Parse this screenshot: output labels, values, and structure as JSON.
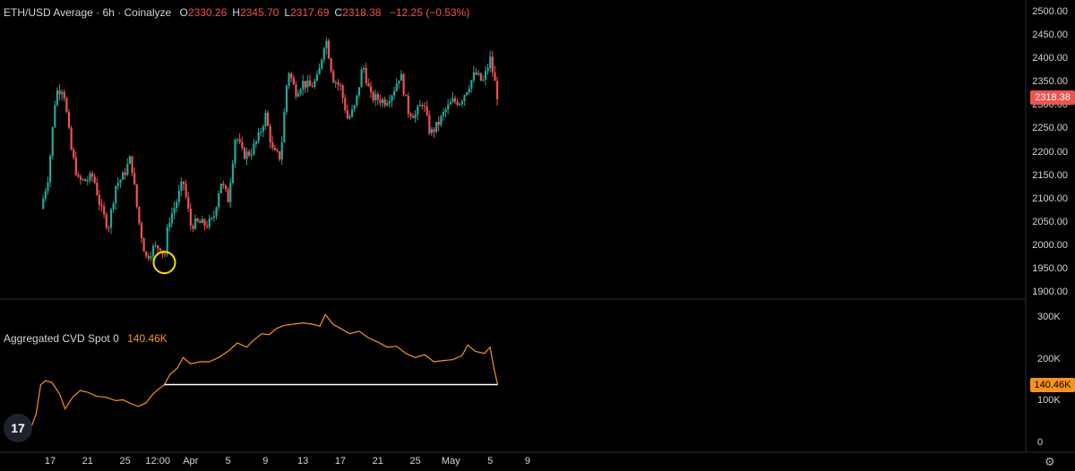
{
  "header": {
    "title": "ETH/USD Average · 6h · Coinalyze",
    "ohlc": [
      {
        "key": "O",
        "value": "2330.26"
      },
      {
        "key": "H",
        "value": "2345.70"
      },
      {
        "key": "L",
        "value": "2317.69"
      },
      {
        "key": "C",
        "value": "2318.38"
      }
    ],
    "change": "−12.25 (−0.53%)"
  },
  "cvd": {
    "title": "Aggregated CVD Spot 0",
    "value": "140.46K"
  },
  "price_tag": "2318.38",
  "cvd_tag": "140.46K",
  "colors": {
    "up": "#26a69a",
    "down": "#ef5350",
    "cvd": "#f7931a",
    "marker": "#f5e000"
  },
  "logo_text": "17",
  "icons": [
    "tradingview-logo-icon",
    "settings-gear-icon"
  ],
  "chart_data": [
    {
      "type": "candlestick",
      "title": "ETH/USD Average · 6h · Coinalyze",
      "y_ticks": [
        "2500.00",
        "2450.00",
        "2400.00",
        "2350.00",
        "2300.00",
        "2250.00",
        "2200.00",
        "2150.00",
        "2100.00",
        "2050.00",
        "2000.00",
        "1950.00",
        "1900.00"
      ],
      "ylim": [
        1890,
        2510
      ],
      "x_ticks": [
        "17",
        "21",
        "25",
        "12:00",
        "Apr",
        "5",
        "9",
        "13",
        "17",
        "21",
        "25",
        "May",
        "5",
        "9"
      ],
      "close_path": [
        {
          "day": 16.0,
          "price": 2080
        },
        {
          "day": 16.8,
          "price": 2150
        },
        {
          "day": 17.6,
          "price": 2330
        },
        {
          "day": 18.4,
          "price": 2340
        },
        {
          "day": 19.2,
          "price": 2210
        },
        {
          "day": 20.0,
          "price": 2140
        },
        {
          "day": 20.8,
          "price": 2140
        },
        {
          "day": 21.6,
          "price": 2150
        },
        {
          "day": 22.4,
          "price": 2080
        },
        {
          "day": 23.2,
          "price": 2040
        },
        {
          "day": 24.0,
          "price": 2130
        },
        {
          "day": 24.8,
          "price": 2150
        },
        {
          "day": 25.6,
          "price": 2190
        },
        {
          "day": 26.4,
          "price": 2060
        },
        {
          "day": 27.2,
          "price": 1975
        },
        {
          "day": 28.0,
          "price": 1995
        },
        {
          "day": 28.8,
          "price": 2000
        },
        {
          "day": 29.2,
          "price": 1975
        },
        {
          "day": 29.6,
          "price": 2050
        },
        {
          "day": 30.4,
          "price": 2090
        },
        {
          "day": 31.2,
          "price": 2140
        },
        {
          "day": 32.0,
          "price": 2045
        },
        {
          "day": 32.8,
          "price": 2050
        },
        {
          "day": 33.6,
          "price": 2045
        },
        {
          "day": 34.4,
          "price": 2055
        },
        {
          "day": 35.2,
          "price": 2140
        },
        {
          "day": 36.0,
          "price": 2100
        },
        {
          "day": 36.8,
          "price": 2240
        },
        {
          "day": 37.6,
          "price": 2195
        },
        {
          "day": 38.4,
          "price": 2200
        },
        {
          "day": 39.2,
          "price": 2230
        },
        {
          "day": 40.0,
          "price": 2280
        },
        {
          "day": 40.8,
          "price": 2200
        },
        {
          "day": 41.6,
          "price": 2190
        },
        {
          "day": 42.4,
          "price": 2380
        },
        {
          "day": 43.2,
          "price": 2330
        },
        {
          "day": 44.0,
          "price": 2350
        },
        {
          "day": 44.8,
          "price": 2340
        },
        {
          "day": 45.6,
          "price": 2360
        },
        {
          "day": 46.4,
          "price": 2450
        },
        {
          "day": 47.2,
          "price": 2360
        },
        {
          "day": 48.0,
          "price": 2340
        },
        {
          "day": 48.8,
          "price": 2270
        },
        {
          "day": 49.6,
          "price": 2300
        },
        {
          "day": 50.4,
          "price": 2390
        },
        {
          "day": 51.2,
          "price": 2320
        },
        {
          "day": 52.0,
          "price": 2315
        },
        {
          "day": 52.8,
          "price": 2310
        },
        {
          "day": 53.6,
          "price": 2330
        },
        {
          "day": 54.4,
          "price": 2370
        },
        {
          "day": 55.2,
          "price": 2290
        },
        {
          "day": 56.0,
          "price": 2280
        },
        {
          "day": 56.8,
          "price": 2310
        },
        {
          "day": 57.6,
          "price": 2240
        },
        {
          "day": 58.4,
          "price": 2260
        },
        {
          "day": 59.2,
          "price": 2290
        },
        {
          "day": 60.0,
          "price": 2310
        },
        {
          "day": 60.8,
          "price": 2310
        },
        {
          "day": 61.6,
          "price": 2340
        },
        {
          "day": 62.4,
          "price": 2370
        },
        {
          "day": 63.2,
          "price": 2350
        },
        {
          "day": 64.0,
          "price": 2400
        },
        {
          "day": 64.8,
          "price": 2318.38
        }
      ],
      "marker": {
        "day": 29.2,
        "price": 1965
      }
    },
    {
      "type": "line",
      "title": "Aggregated CVD Spot 0",
      "series_name": "Aggregated CVD Spot 0",
      "y_ticks": [
        "300K",
        "200K",
        "100K",
        "0"
      ],
      "ylim": [
        0,
        320000
      ],
      "last_value": "140.46K",
      "points": [
        {
          "day": 15.0,
          "value": 40000
        },
        {
          "day": 15.5,
          "value": 70000
        },
        {
          "day": 16.0,
          "value": 140000
        },
        {
          "day": 16.5,
          "value": 150000
        },
        {
          "day": 17.2,
          "value": 145000
        },
        {
          "day": 18.0,
          "value": 118000
        },
        {
          "day": 18.6,
          "value": 82000
        },
        {
          "day": 19.4,
          "value": 110000
        },
        {
          "day": 20.2,
          "value": 126000
        },
        {
          "day": 21.0,
          "value": 122000
        },
        {
          "day": 22.0,
          "value": 112000
        },
        {
          "day": 23.0,
          "value": 110000
        },
        {
          "day": 24.0,
          "value": 102000
        },
        {
          "day": 24.8,
          "value": 104000
        },
        {
          "day": 25.6,
          "value": 95000
        },
        {
          "day": 26.4,
          "value": 88000
        },
        {
          "day": 27.2,
          "value": 96000
        },
        {
          "day": 28.0,
          "value": 118000
        },
        {
          "day": 28.6,
          "value": 130000
        },
        {
          "day": 29.2,
          "value": 140000
        },
        {
          "day": 29.8,
          "value": 165000
        },
        {
          "day": 30.6,
          "value": 180000
        },
        {
          "day": 31.2,
          "value": 205000
        },
        {
          "day": 32.0,
          "value": 190000
        },
        {
          "day": 33.0,
          "value": 195000
        },
        {
          "day": 34.0,
          "value": 195000
        },
        {
          "day": 35.0,
          "value": 205000
        },
        {
          "day": 36.0,
          "value": 220000
        },
        {
          "day": 37.0,
          "value": 240000
        },
        {
          "day": 38.0,
          "value": 230000
        },
        {
          "day": 38.8,
          "value": 248000
        },
        {
          "day": 39.6,
          "value": 262000
        },
        {
          "day": 40.4,
          "value": 260000
        },
        {
          "day": 41.2,
          "value": 275000
        },
        {
          "day": 42.0,
          "value": 282000
        },
        {
          "day": 43.0,
          "value": 285000
        },
        {
          "day": 44.0,
          "value": 288000
        },
        {
          "day": 45.0,
          "value": 285000
        },
        {
          "day": 45.8,
          "value": 280000
        },
        {
          "day": 46.4,
          "value": 308000
        },
        {
          "day": 47.2,
          "value": 285000
        },
        {
          "day": 48.0,
          "value": 275000
        },
        {
          "day": 49.0,
          "value": 262000
        },
        {
          "day": 50.0,
          "value": 268000
        },
        {
          "day": 51.0,
          "value": 252000
        },
        {
          "day": 52.0,
          "value": 242000
        },
        {
          "day": 53.0,
          "value": 230000
        },
        {
          "day": 54.0,
          "value": 232000
        },
        {
          "day": 55.0,
          "value": 215000
        },
        {
          "day": 56.0,
          "value": 205000
        },
        {
          "day": 57.0,
          "value": 212000
        },
        {
          "day": 58.0,
          "value": 195000
        },
        {
          "day": 59.0,
          "value": 198000
        },
        {
          "day": 60.0,
          "value": 200000
        },
        {
          "day": 61.0,
          "value": 210000
        },
        {
          "day": 61.6,
          "value": 235000
        },
        {
          "day": 62.4,
          "value": 220000
        },
        {
          "day": 63.4,
          "value": 215000
        },
        {
          "day": 64.0,
          "value": 230000
        },
        {
          "day": 64.4,
          "value": 180000
        },
        {
          "day": 64.8,
          "value": 140460
        }
      ],
      "baseline": {
        "from_day": 29.2,
        "to_day": 64.8,
        "value": 140460
      }
    }
  ]
}
